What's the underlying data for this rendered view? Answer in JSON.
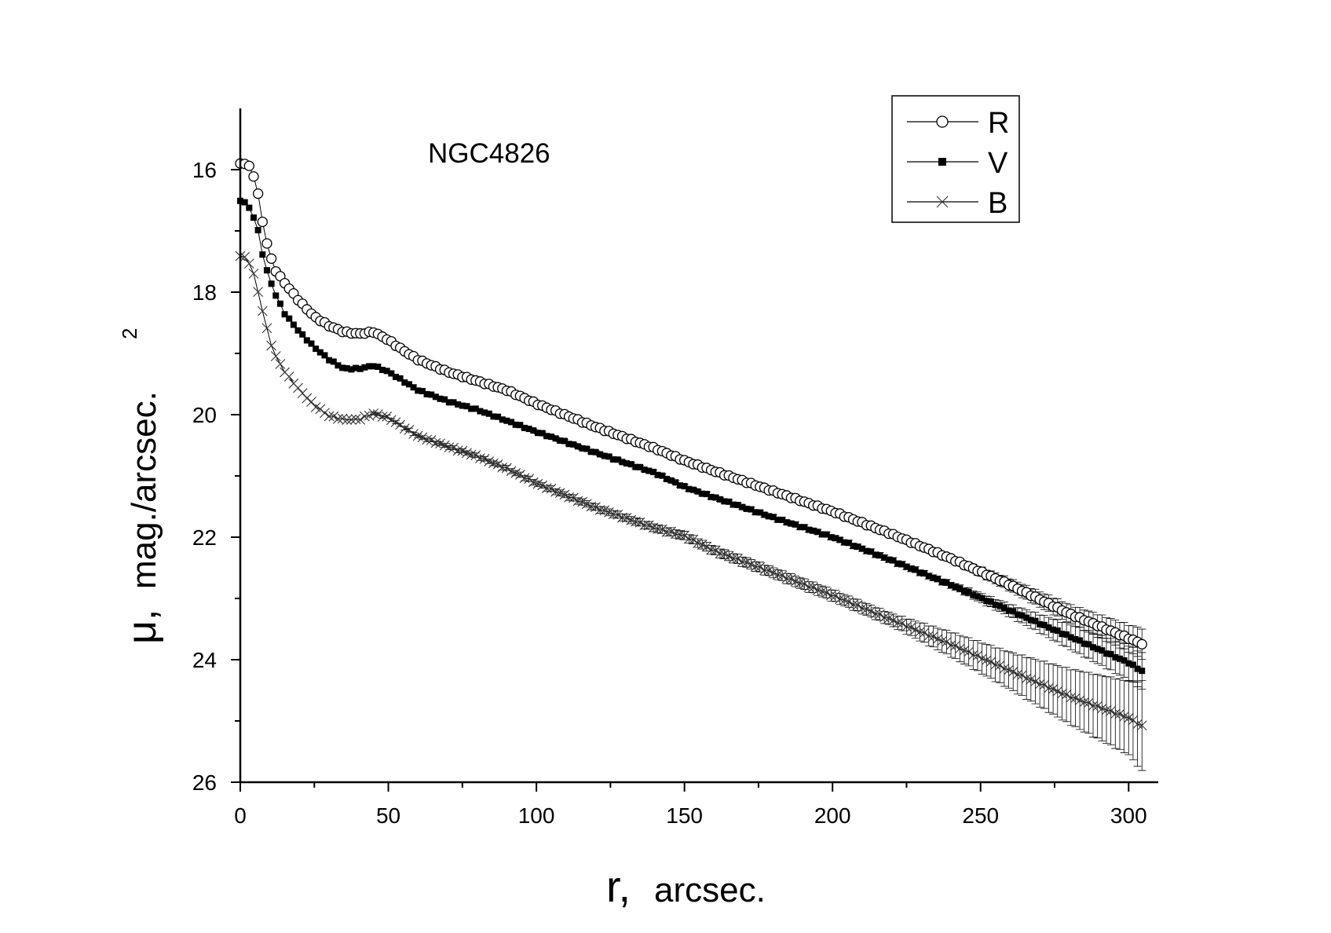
{
  "chart_data": {
    "type": "scatter",
    "title": "NGC4826",
    "xlabel": {
      "main": "r,",
      "unit": "arcsec."
    },
    "ylabel": {
      "mu": "μ,",
      "unit": "mag./arcsec.",
      "exponent": "2"
    },
    "xlim": [
      0,
      310
    ],
    "ylim": [
      15,
      26
    ],
    "y_inverted": true,
    "x_ticks": [
      0,
      50,
      100,
      150,
      200,
      250,
      300
    ],
    "y_ticks": [
      16,
      18,
      20,
      22,
      24,
      26
    ],
    "legend_position": "top-right",
    "sample_step_arcsec": 1.5,
    "series": [
      {
        "name": "R",
        "marker": "open-circle",
        "points": [
          [
            0,
            15.9
          ],
          [
            2,
            15.9
          ],
          [
            4,
            16.0
          ],
          [
            6,
            16.4
          ],
          [
            8,
            17.0
          ],
          [
            10,
            17.4
          ],
          [
            12,
            17.65
          ],
          [
            15,
            17.85
          ],
          [
            20,
            18.15
          ],
          [
            25,
            18.4
          ],
          [
            30,
            18.55
          ],
          [
            35,
            18.65
          ],
          [
            40,
            18.68
          ],
          [
            45,
            18.65
          ],
          [
            50,
            18.78
          ],
          [
            55,
            18.95
          ],
          [
            60,
            19.1
          ],
          [
            70,
            19.3
          ],
          [
            80,
            19.45
          ],
          [
            90,
            19.6
          ],
          [
            100,
            19.82
          ],
          [
            120,
            20.2
          ],
          [
            140,
            20.55
          ],
          [
            150,
            20.75
          ],
          [
            160,
            20.92
          ],
          [
            180,
            21.25
          ],
          [
            200,
            21.58
          ],
          [
            220,
            21.95
          ],
          [
            240,
            22.35
          ],
          [
            260,
            22.78
          ],
          [
            280,
            23.25
          ],
          [
            300,
            23.65
          ],
          [
            305,
            23.75
          ]
        ],
        "error": [
          [
            0,
            0
          ],
          [
            240,
            0.05
          ],
          [
            260,
            0.1
          ],
          [
            280,
            0.15
          ],
          [
            300,
            0.22
          ],
          [
            305,
            0.25
          ]
        ]
      },
      {
        "name": "V",
        "marker": "filled-square",
        "points": [
          [
            0,
            16.5
          ],
          [
            2,
            16.55
          ],
          [
            4,
            16.7
          ],
          [
            6,
            17.0
          ],
          [
            8,
            17.5
          ],
          [
            10,
            17.8
          ],
          [
            12,
            18.05
          ],
          [
            15,
            18.35
          ],
          [
            20,
            18.65
          ],
          [
            25,
            18.9
          ],
          [
            30,
            19.1
          ],
          [
            35,
            19.25
          ],
          [
            40,
            19.25
          ],
          [
            45,
            19.2
          ],
          [
            50,
            19.3
          ],
          [
            55,
            19.45
          ],
          [
            60,
            19.6
          ],
          [
            70,
            19.78
          ],
          [
            80,
            19.92
          ],
          [
            90,
            20.1
          ],
          [
            100,
            20.28
          ],
          [
            120,
            20.62
          ],
          [
            140,
            20.95
          ],
          [
            150,
            21.18
          ],
          [
            160,
            21.35
          ],
          [
            180,
            21.68
          ],
          [
            200,
            22.0
          ],
          [
            220,
            22.38
          ],
          [
            240,
            22.78
          ],
          [
            260,
            23.2
          ],
          [
            280,
            23.62
          ],
          [
            300,
            24.05
          ],
          [
            305,
            24.2
          ]
        ],
        "error": [
          [
            0,
            0
          ],
          [
            240,
            0.05
          ],
          [
            260,
            0.1
          ],
          [
            280,
            0.2
          ],
          [
            300,
            0.28
          ],
          [
            305,
            0.3
          ]
        ]
      },
      {
        "name": "B",
        "marker": "cross",
        "points": [
          [
            0,
            17.4
          ],
          [
            2,
            17.45
          ],
          [
            4,
            17.6
          ],
          [
            6,
            18.0
          ],
          [
            8,
            18.4
          ],
          [
            10,
            18.8
          ],
          [
            12,
            19.05
          ],
          [
            15,
            19.3
          ],
          [
            20,
            19.6
          ],
          [
            25,
            19.85
          ],
          [
            30,
            20.02
          ],
          [
            35,
            20.08
          ],
          [
            40,
            20.08
          ],
          [
            45,
            19.98
          ],
          [
            50,
            20.05
          ],
          [
            55,
            20.2
          ],
          [
            60,
            20.35
          ],
          [
            70,
            20.52
          ],
          [
            80,
            20.68
          ],
          [
            90,
            20.88
          ],
          [
            100,
            21.12
          ],
          [
            120,
            21.52
          ],
          [
            140,
            21.85
          ],
          [
            150,
            21.98
          ],
          [
            160,
            22.22
          ],
          [
            180,
            22.58
          ],
          [
            200,
            22.95
          ],
          [
            220,
            23.35
          ],
          [
            240,
            23.75
          ],
          [
            260,
            24.18
          ],
          [
            280,
            24.6
          ],
          [
            300,
            24.95
          ],
          [
            305,
            25.1
          ]
        ],
        "error": [
          [
            0,
            0
          ],
          [
            220,
            0.1
          ],
          [
            240,
            0.2
          ],
          [
            260,
            0.3
          ],
          [
            280,
            0.45
          ],
          [
            300,
            0.6
          ],
          [
            305,
            0.75
          ]
        ]
      }
    ]
  }
}
